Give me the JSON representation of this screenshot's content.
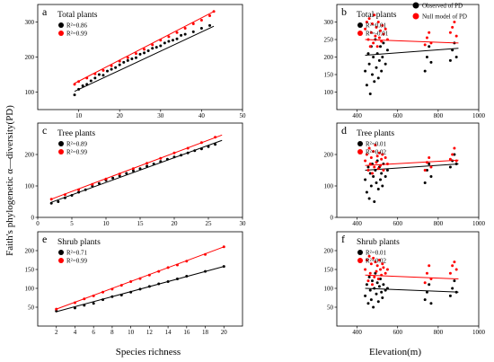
{
  "figure": {
    "ylabel": "Faith's phylogenetic α—diversity(PD)",
    "xlabel_left": "Species richness",
    "xlabel_right": "Elevation(m)",
    "global_legend": [
      {
        "label": "Observed of PD",
        "color": "#000000"
      },
      {
        "label": "Null model of PD",
        "color": "#ff0000"
      }
    ]
  },
  "chart_data": [
    {
      "type": "scatter",
      "panel": "a",
      "title": "Total plants",
      "xlim": [
        0,
        50
      ],
      "ylim": [
        50,
        350
      ],
      "xticks": [
        10,
        20,
        30,
        40,
        50
      ],
      "yticks": [
        100,
        200,
        300
      ],
      "legend": [
        {
          "label": "R²=0.86",
          "color": "#000000"
        },
        {
          "label": "R²=0.99",
          "color": "#ff0000"
        }
      ],
      "series": [
        {
          "name": "Observed of PD",
          "color": "#000000",
          "fit": [
            [
              9,
              102
            ],
            [
              43,
              288
            ]
          ],
          "x": [
            9,
            10,
            11,
            12,
            13,
            14,
            15,
            16,
            17,
            18,
            19,
            20,
            21,
            22,
            23,
            24,
            25,
            26,
            27,
            28,
            29,
            30,
            31,
            32,
            33,
            34,
            35,
            36,
            38,
            40,
            42
          ],
          "y": [
            92,
            108,
            118,
            122,
            132,
            140,
            150,
            148,
            160,
            165,
            170,
            178,
            185,
            190,
            195,
            198,
            208,
            212,
            218,
            225,
            228,
            232,
            240,
            245,
            248,
            252,
            262,
            265,
            272,
            282,
            290
          ]
        },
        {
          "name": "Null model of PD",
          "color": "#ff0000",
          "fit": [
            [
              9,
              125
            ],
            [
              43,
              330
            ]
          ],
          "x": [
            9,
            10,
            12,
            14,
            16,
            18,
            20,
            22,
            24,
            26,
            28,
            30,
            32,
            34,
            36,
            38,
            40,
            42,
            43
          ],
          "y": [
            122,
            130,
            140,
            152,
            162,
            175,
            188,
            198,
            210,
            222,
            235,
            248,
            258,
            270,
            282,
            295,
            305,
            318,
            330
          ]
        }
      ]
    },
    {
      "type": "scatter",
      "panel": "b",
      "title": "Total plants",
      "xlim": [
        300,
        1000
      ],
      "ylim": [
        50,
        350
      ],
      "xticks": [
        400,
        600,
        800,
        1000
      ],
      "yticks": [
        100,
        150,
        200,
        250,
        300
      ],
      "legend": [
        {
          "label": "R²=0.01",
          "color": "#000000"
        },
        {
          "label": "R²=-0.01",
          "color": "#ff0000"
        }
      ],
      "series": [
        {
          "name": "Observed of PD",
          "color": "#000000",
          "fit": [
            [
              440,
              205
            ],
            [
              900,
              225
            ]
          ],
          "x": [
            440,
            448,
            455,
            460,
            465,
            470,
            475,
            480,
            485,
            490,
            495,
            500,
            505,
            510,
            515,
            520,
            525,
            530,
            540,
            550,
            735,
            745,
            755,
            765,
            860,
            870,
            880,
            890
          ],
          "y": [
            160,
            120,
            210,
            180,
            95,
            230,
            150,
            200,
            130,
            250,
            170,
            210,
            140,
            190,
            230,
            160,
            200,
            240,
            180,
            220,
            160,
            200,
            230,
            185,
            190,
            220,
            240,
            200
          ]
        },
        {
          "name": "Null model of PD",
          "color": "#ff0000",
          "fit": [
            [
              440,
              250
            ],
            [
              900,
              240
            ]
          ],
          "x": [
            440,
            448,
            455,
            460,
            465,
            470,
            475,
            480,
            485,
            490,
            495,
            500,
            505,
            510,
            515,
            520,
            525,
            530,
            540,
            550,
            735,
            745,
            755,
            765,
            860,
            870,
            880,
            890
          ],
          "y": [
            280,
            300,
            250,
            310,
            230,
            270,
            295,
            240,
            320,
            260,
            285,
            230,
            300,
            255,
            275,
            245,
            290,
            265,
            280,
            250,
            235,
            255,
            270,
            240,
            270,
            285,
            300,
            260
          ]
        }
      ]
    },
    {
      "type": "scatter",
      "panel": "c",
      "title": "Tree plants",
      "xlim": [
        0,
        30
      ],
      "ylim": [
        0,
        300
      ],
      "xticks": [
        0,
        5,
        10,
        15,
        20,
        25,
        30
      ],
      "yticks": [
        0,
        100,
        200
      ],
      "legend": [
        {
          "label": "R²=0.89",
          "color": "#000000"
        },
        {
          "label": "R²=0.99",
          "color": "#ff0000"
        }
      ],
      "series": [
        {
          "name": "Observed of PD",
          "color": "#000000",
          "fit": [
            [
              2,
              48
            ],
            [
              27,
              245
            ]
          ],
          "x": [
            2,
            3,
            4,
            5,
            6,
            7,
            8,
            9,
            10,
            11,
            12,
            13,
            14,
            15,
            16,
            17,
            18,
            19,
            20,
            21,
            22,
            23,
            24,
            25,
            26
          ],
          "y": [
            45,
            50,
            62,
            70,
            80,
            88,
            100,
            108,
            118,
            125,
            132,
            140,
            148,
            155,
            163,
            170,
            178,
            185,
            192,
            198,
            205,
            212,
            218,
            225,
            232
          ]
        },
        {
          "name": "Null model of PD",
          "color": "#ff0000",
          "fit": [
            [
              2,
              58
            ],
            [
              27,
              262
            ]
          ],
          "x": [
            2,
            4,
            6,
            8,
            10,
            12,
            14,
            16,
            18,
            20,
            22,
            24,
            26
          ],
          "y": [
            58,
            72,
            88,
            105,
            122,
            138,
            155,
            172,
            188,
            205,
            220,
            238,
            255
          ]
        }
      ]
    },
    {
      "type": "scatter",
      "panel": "d",
      "title": "Tree plants",
      "xlim": [
        300,
        1000
      ],
      "ylim": [
        0,
        300
      ],
      "xticks": [
        400,
        600,
        800,
        1000
      ],
      "yticks": [
        0,
        100,
        200
      ],
      "legend": [
        {
          "label": "R²=0.01",
          "color": "#000000"
        },
        {
          "label": "R²=0.02",
          "color": "#ff0000"
        }
      ],
      "series": [
        {
          "name": "Observed of PD",
          "color": "#000000",
          "fit": [
            [
              440,
              150
            ],
            [
              900,
              170
            ]
          ],
          "x": [
            440,
            448,
            455,
            460,
            465,
            470,
            475,
            480,
            485,
            490,
            495,
            500,
            505,
            510,
            515,
            520,
            525,
            530,
            540,
            550,
            735,
            745,
            755,
            765,
            860,
            870,
            880,
            890
          ],
          "y": [
            120,
            80,
            160,
            60,
            140,
            100,
            170,
            130,
            50,
            150,
            110,
            180,
            90,
            160,
            120,
            140,
            100,
            170,
            130,
            150,
            110,
            150,
            170,
            130,
            160,
            180,
            200,
            170
          ]
        },
        {
          "name": "Null model of PD",
          "color": "#ff0000",
          "fit": [
            [
              440,
              165
            ],
            [
              900,
              182
            ]
          ],
          "x": [
            440,
            448,
            455,
            460,
            465,
            470,
            475,
            480,
            485,
            490,
            495,
            500,
            505,
            510,
            515,
            520,
            525,
            530,
            540,
            550,
            735,
            745,
            755,
            765,
            860,
            870,
            880,
            890
          ],
          "y": [
            180,
            200,
            150,
            220,
            170,
            190,
            140,
            210,
            160,
            230,
            175,
            195,
            155,
            205,
            165,
            185,
            200,
            150,
            190,
            170,
            150,
            175,
            190,
            160,
            185,
            200,
            220,
            180
          ]
        }
      ]
    },
    {
      "type": "scatter",
      "panel": "e",
      "title": "Shrub plants",
      "xlim": [
        0,
        22
      ],
      "ylim": [
        0,
        250
      ],
      "xticks": [
        2,
        4,
        6,
        8,
        10,
        12,
        14,
        16,
        18,
        20
      ],
      "yticks": [
        50,
        100,
        150,
        200
      ],
      "legend": [
        {
          "label": "R²=0.71",
          "color": "#000000"
        },
        {
          "label": "R²=0.99",
          "color": "#ff0000"
        }
      ],
      "series": [
        {
          "name": "Observed of PD",
          "color": "#000000",
          "fit": [
            [
              2,
              38
            ],
            [
              20,
              158
            ]
          ],
          "x": [
            2,
            4,
            5,
            6,
            7,
            8,
            9,
            10,
            11,
            12,
            13,
            14,
            15,
            16,
            18,
            20
          ],
          "y": [
            40,
            48,
            55,
            60,
            70,
            78,
            82,
            90,
            98,
            105,
            112,
            118,
            125,
            132,
            145,
            158
          ]
        },
        {
          "name": "Null model of PD",
          "color": "#ff0000",
          "fit": [
            [
              2,
              45
            ],
            [
              20,
              210
            ]
          ],
          "x": [
            2,
            4,
            5,
            6,
            7,
            8,
            9,
            10,
            11,
            12,
            13,
            14,
            15,
            16,
            18,
            20
          ],
          "y": [
            45,
            62,
            72,
            80,
            90,
            98,
            108,
            118,
            126,
            135,
            145,
            155,
            162,
            172,
            190,
            210
          ]
        }
      ]
    },
    {
      "type": "scatter",
      "panel": "f",
      "title": "Shrub plants",
      "xlim": [
        300,
        1000
      ],
      "ylim": [
        0,
        250
      ],
      "xticks": [
        400,
        600,
        800,
        1000
      ],
      "yticks": [
        50,
        100,
        150,
        200
      ],
      "legend": [
        {
          "label": "R²=0.01",
          "color": "#000000"
        },
        {
          "label": "R²=0.02",
          "color": "#ff0000"
        }
      ],
      "series": [
        {
          "name": "Observed of PD",
          "color": "#000000",
          "fit": [
            [
              440,
              100
            ],
            [
              900,
              90
            ]
          ],
          "x": [
            440,
            448,
            455,
            460,
            465,
            470,
            475,
            480,
            485,
            490,
            495,
            500,
            505,
            510,
            515,
            520,
            525,
            530,
            540,
            550,
            735,
            745,
            755,
            765,
            860,
            870,
            880,
            890
          ],
          "y": [
            80,
            110,
            60,
            130,
            95,
            70,
            120,
            50,
            100,
            140,
            85,
            115,
            65,
            105,
            125,
            90,
            75,
            110,
            95,
            100,
            70,
            90,
            110,
            60,
            80,
            100,
            120,
            90
          ]
        },
        {
          "name": "Null model of PD",
          "color": "#ff0000",
          "fit": [
            [
              440,
              135
            ],
            [
              900,
              125
            ]
          ],
          "x": [
            440,
            448,
            455,
            460,
            465,
            470,
            475,
            480,
            485,
            490,
            495,
            500,
            505,
            510,
            515,
            520,
            525,
            530,
            540,
            550,
            735,
            745,
            755,
            765,
            860,
            870,
            880,
            890
          ],
          "y": [
            150,
            175,
            120,
            185,
            140,
            165,
            110,
            180,
            130,
            170,
            145,
            160,
            125,
            175,
            150,
            135,
            165,
            155,
            140,
            150,
            115,
            140,
            160,
            125,
            140,
            160,
            170,
            150
          ]
        }
      ]
    }
  ]
}
